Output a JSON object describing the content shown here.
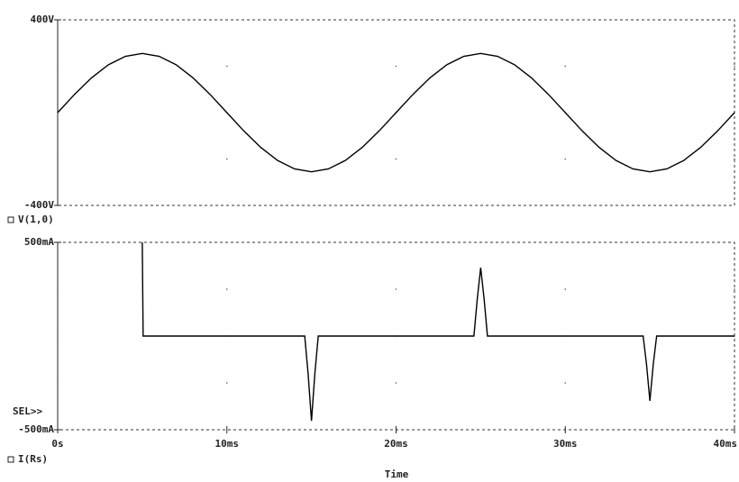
{
  "chart_data": [
    {
      "type": "line",
      "x": [
        0,
        1,
        2,
        3,
        4,
        5,
        6,
        7,
        8,
        9,
        10,
        11,
        12,
        13,
        14,
        15,
        16,
        17,
        18,
        19,
        20,
        21,
        22,
        23,
        24,
        25,
        26,
        27,
        28,
        29,
        30,
        31,
        32,
        33,
        34,
        35,
        36,
        37,
        38,
        39,
        40
      ],
      "series": [
        {
          "name": "V(1,0)",
          "color": "#000000",
          "values": [
            0,
            78.8,
            149.9,
            206.3,
            242.5,
            255,
            242.5,
            206.3,
            149.9,
            78.8,
            0,
            -78.8,
            -149.9,
            -206.3,
            -242.5,
            -255,
            -242.5,
            -206.3,
            -149.9,
            -78.8,
            0,
            78.8,
            149.9,
            206.3,
            242.5,
            255,
            242.5,
            206.3,
            149.9,
            78.8,
            0,
            -78.8,
            -149.9,
            -206.3,
            -242.5,
            -255,
            -242.5,
            -206.3,
            -149.9,
            -78.8,
            0
          ]
        }
      ],
      "xlim": [
        0,
        40
      ],
      "ylim": [
        -400,
        400
      ],
      "yticks": [
        {
          "value": -400,
          "label": "-400V"
        },
        {
          "value": 400,
          "label": "400V"
        }
      ]
    },
    {
      "type": "line",
      "x": [
        5,
        5.05,
        14.6,
        14.8,
        15,
        15.2,
        15.4,
        24.6,
        24.8,
        25,
        25.2,
        25.4,
        34.6,
        34.8,
        35,
        35.2,
        35.4,
        40
      ],
      "series": [
        {
          "name": "I(Rs)",
          "color": "#000000",
          "values": [
            500,
            0,
            0,
            -200,
            -452,
            -200,
            0,
            0,
            200,
            365,
            200,
            0,
            0,
            -150,
            -346,
            -150,
            0,
            0
          ]
        }
      ],
      "xlim": [
        0,
        40
      ],
      "ylim": [
        -500,
        500
      ],
      "yticks": [
        {
          "value": -500,
          "label": "-500mA"
        },
        {
          "value": 500,
          "label": "500mA"
        }
      ],
      "xticks": [
        {
          "value": 0,
          "label": "0s"
        },
        {
          "value": 10,
          "label": "10ms"
        },
        {
          "value": 20,
          "label": "20ms"
        },
        {
          "value": 30,
          "label": "30ms"
        },
        {
          "value": 40,
          "label": "40ms"
        }
      ],
      "xlabel": "Time",
      "annotation": "SEL>>"
    }
  ]
}
